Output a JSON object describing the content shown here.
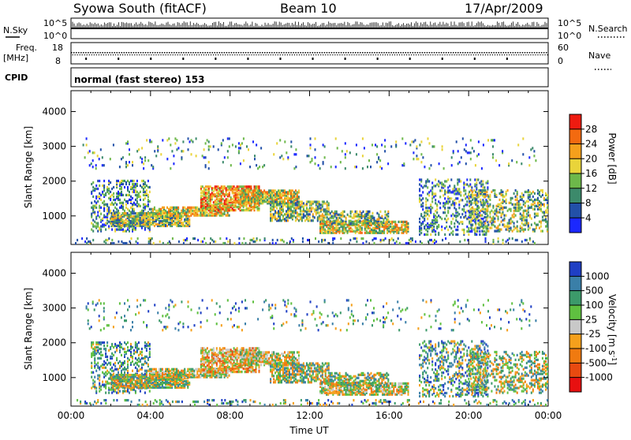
{
  "header": {
    "station": "Syowa South (fitACF)",
    "beam": "Beam 10",
    "date": "17/Apr/2009"
  },
  "top_panels": {
    "nsky_label": "N.Sky",
    "nsky_ticks": [
      "10^5",
      "10^0"
    ],
    "nsearch_label": "N.Search",
    "nsearch_ticks": [
      "10^5",
      "10^0"
    ],
    "freq_label": "Freq.",
    "freq_unit": "[MHz]",
    "freq_ticks": [
      "18",
      "8"
    ],
    "nave_label": "Nave",
    "nave_ticks": [
      "60",
      "0"
    ],
    "cpid_label": "CPID",
    "cpid_text": "normal (fast stereo) 153"
  },
  "chart_data": [
    {
      "type": "heatmap",
      "title": "",
      "ylabel": "Slant Range [km]",
      "ylim": [
        180,
        4600
      ],
      "yticks": [
        1000,
        2000,
        3000,
        4000
      ],
      "xlabel": "",
      "colorbar": {
        "label": "Power [dB]",
        "ticks": [
          "28",
          "24",
          "20",
          "16",
          "12",
          "8",
          "4"
        ],
        "colors": [
          "#1b28ff",
          "#2250a8",
          "#3c8a6b",
          "#6db84a",
          "#e9d43a",
          "#f5a01c",
          "#f36a10",
          "#ee1b10"
        ]
      }
    },
    {
      "type": "heatmap",
      "title": "",
      "ylabel": "Slant Range [km]",
      "ylim": [
        180,
        4600
      ],
      "yticks": [
        1000,
        2000,
        3000,
        4000
      ],
      "xlabel": "Time UT",
      "xticks": [
        "00:00",
        "04:00",
        "08:00",
        "12:00",
        "16:00",
        "20:00",
        "00:00"
      ],
      "colorbar": {
        "label_main": "Velocity",
        "label_unit": "[m s",
        "label_sup": "-1",
        "label_close": "]",
        "ticks": [
          "1000",
          "500",
          "100",
          "25",
          "-25",
          "-100",
          "-500",
          "-1000"
        ],
        "colors": [
          "#1f3fc4",
          "#3a7fa8",
          "#3c9a6a",
          "#5fc040",
          "#c8c8c8",
          "#f5a01c",
          "#f07a10",
          "#e84a10",
          "#e81010"
        ]
      }
    }
  ]
}
